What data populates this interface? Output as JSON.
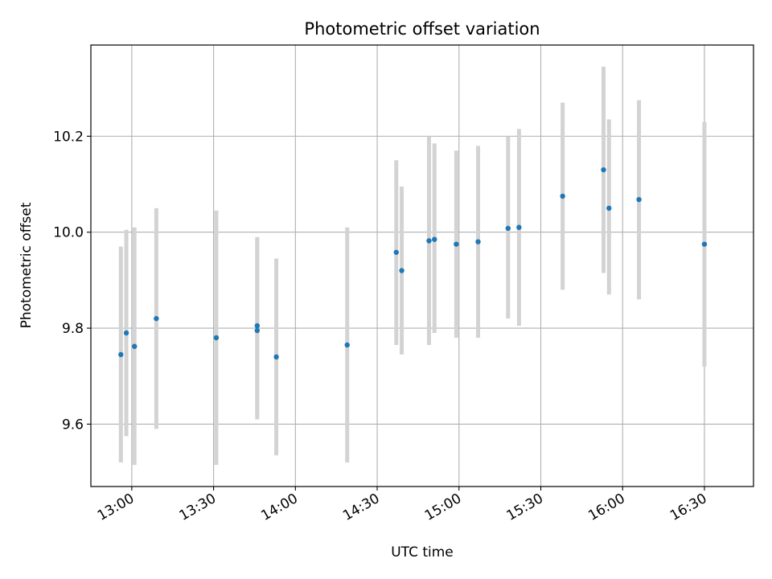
{
  "chart_data": {
    "type": "scatter",
    "title": "Photometric offset variation",
    "xlabel": "UTC time",
    "ylabel": "Photometric offset",
    "x_ticks": [
      "13:00",
      "13:30",
      "14:00",
      "14:30",
      "15:00",
      "15:30",
      "16:00",
      "16:30"
    ],
    "y_ticks": [
      "9.6",
      "9.8",
      "10.0",
      "10.2"
    ],
    "xlim": [
      "12:45",
      "16:48"
    ],
    "ylim": [
      9.47,
      10.39
    ],
    "grid": true,
    "error_bar_color": "#d3d3d3",
    "point_color": "#1f77b4",
    "points": [
      {
        "time": "12:56",
        "y": 9.745,
        "y_low": 9.52,
        "y_high": 9.97
      },
      {
        "time": "12:58",
        "y": 9.79,
        "y_low": 9.575,
        "y_high": 10.005
      },
      {
        "time": "13:01",
        "y": 9.762,
        "y_low": 9.515,
        "y_high": 10.01
      },
      {
        "time": "13:09",
        "y": 9.82,
        "y_low": 9.59,
        "y_high": 10.05
      },
      {
        "time": "13:31",
        "y": 9.78,
        "y_low": 9.515,
        "y_high": 10.045
      },
      {
        "time": "13:46",
        "y": 9.805,
        "y_low": 9.62,
        "y_high": 9.99
      },
      {
        "time": "13:46",
        "y": 9.795,
        "y_low": 9.61,
        "y_high": 9.985
      },
      {
        "time": "13:53",
        "y": 9.74,
        "y_low": 9.535,
        "y_high": 9.945
      },
      {
        "time": "14:19",
        "y": 9.765,
        "y_low": 9.52,
        "y_high": 10.01
      },
      {
        "time": "14:37",
        "y": 9.958,
        "y_low": 9.765,
        "y_high": 10.15
      },
      {
        "time": "14:39",
        "y": 9.92,
        "y_low": 9.745,
        "y_high": 10.095
      },
      {
        "time": "14:49",
        "y": 9.982,
        "y_low": 9.765,
        "y_high": 10.2
      },
      {
        "time": "14:51",
        "y": 9.985,
        "y_low": 9.79,
        "y_high": 10.185
      },
      {
        "time": "14:59",
        "y": 9.975,
        "y_low": 9.78,
        "y_high": 10.17
      },
      {
        "time": "15:07",
        "y": 9.98,
        "y_low": 9.78,
        "y_high": 10.18
      },
      {
        "time": "15:18",
        "y": 10.008,
        "y_low": 9.82,
        "y_high": 10.2
      },
      {
        "time": "15:22",
        "y": 10.01,
        "y_low": 9.805,
        "y_high": 10.215
      },
      {
        "time": "15:38",
        "y": 10.075,
        "y_low": 9.88,
        "y_high": 10.27
      },
      {
        "time": "15:53",
        "y": 10.13,
        "y_low": 9.915,
        "y_high": 10.345
      },
      {
        "time": "15:55",
        "y": 10.05,
        "y_low": 9.87,
        "y_high": 10.235
      },
      {
        "time": "16:06",
        "y": 10.068,
        "y_low": 9.86,
        "y_high": 10.275
      },
      {
        "time": "16:30",
        "y": 9.975,
        "y_low": 9.72,
        "y_high": 10.23
      }
    ]
  }
}
